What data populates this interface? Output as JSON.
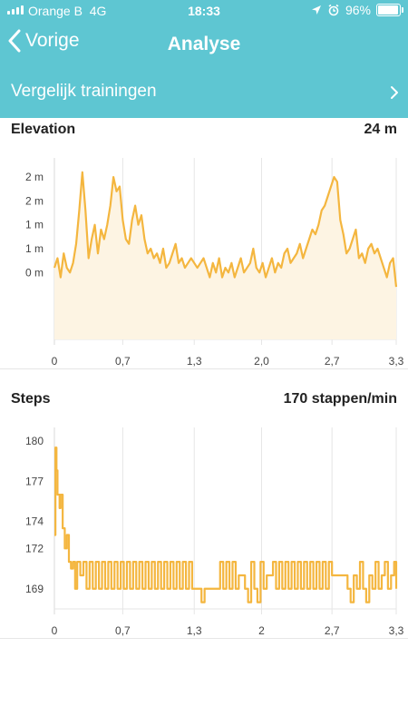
{
  "status_bar": {
    "carrier": "Orange B",
    "network": "4G",
    "time": "18:33",
    "battery": "96%",
    "battery_level": 0.96
  },
  "nav": {
    "back_label": "Vorige",
    "title": "Analyse"
  },
  "compare": {
    "label": "Vergelijk trainingen"
  },
  "colors": {
    "header": "#5ec6d2",
    "line": "#f4b63f",
    "fill": "#fdf4e3"
  },
  "cards": [
    {
      "title": "Elevation",
      "value": "24 m"
    },
    {
      "title": "Steps",
      "value": "170 stappen/min"
    }
  ],
  "chart_data": [
    {
      "type": "area",
      "title": "Elevation",
      "ylim": [
        -0.9,
        2.9
      ],
      "xlim": [
        0,
        3.3
      ],
      "y_ticks": [
        {
          "v": 2.5,
          "label": "2 m"
        },
        {
          "v": 2.0,
          "label": "2 m"
        },
        {
          "v": 1.5,
          "label": "1 m"
        },
        {
          "v": 1.0,
          "label": "1 m"
        },
        {
          "v": 0.5,
          "label": "0 m"
        }
      ],
      "x_ticks": [
        {
          "v": 0,
          "label": "0"
        },
        {
          "v": 0.66,
          "label": "0,7"
        },
        {
          "v": 1.35,
          "label": "1,3"
        },
        {
          "v": 2.0,
          "label": "2,0"
        },
        {
          "v": 2.68,
          "label": "2,7"
        },
        {
          "v": 3.3,
          "label": "3,3"
        }
      ],
      "grid": "vertical",
      "x": [
        0,
        0.03,
        0.06,
        0.09,
        0.12,
        0.15,
        0.18,
        0.21,
        0.24,
        0.27,
        0.3,
        0.33,
        0.36,
        0.39,
        0.42,
        0.45,
        0.48,
        0.51,
        0.54,
        0.57,
        0.6,
        0.63,
        0.66,
        0.69,
        0.72,
        0.75,
        0.78,
        0.81,
        0.84,
        0.87,
        0.9,
        0.93,
        0.96,
        0.99,
        1.02,
        1.05,
        1.08,
        1.11,
        1.14,
        1.17,
        1.2,
        1.23,
        1.26,
        1.29,
        1.32,
        1.35,
        1.38,
        1.41,
        1.44,
        1.47,
        1.5,
        1.53,
        1.56,
        1.59,
        1.62,
        1.65,
        1.68,
        1.71,
        1.74,
        1.77,
        1.8,
        1.83,
        1.86,
        1.89,
        1.92,
        1.95,
        1.98,
        2.01,
        2.04,
        2.07,
        2.1,
        2.13,
        2.16,
        2.19,
        2.22,
        2.25,
        2.28,
        2.31,
        2.34,
        2.37,
        2.4,
        2.43,
        2.46,
        2.49,
        2.52,
        2.55,
        2.58,
        2.61,
        2.64,
        2.67,
        2.7,
        2.73,
        2.76,
        2.79,
        2.82,
        2.85,
        2.88,
        2.91,
        2.94,
        2.97,
        3.0,
        3.03,
        3.06,
        3.09,
        3.12,
        3.15,
        3.18,
        3.21,
        3.24,
        3.27,
        3.3
      ],
      "y": [
        0.6,
        0.8,
        0.4,
        0.9,
        0.6,
        0.5,
        0.7,
        1.1,
        1.8,
        2.6,
        1.8,
        0.8,
        1.2,
        1.5,
        0.9,
        1.4,
        1.2,
        1.5,
        1.9,
        2.5,
        2.2,
        2.3,
        1.6,
        1.2,
        1.1,
        1.6,
        1.9,
        1.5,
        1.7,
        1.2,
        0.9,
        1.0,
        0.8,
        0.9,
        0.7,
        1.0,
        0.6,
        0.7,
        0.9,
        1.1,
        0.7,
        0.8,
        0.6,
        0.7,
        0.8,
        0.7,
        0.6,
        0.7,
        0.8,
        0.6,
        0.4,
        0.7,
        0.5,
        0.8,
        0.4,
        0.6,
        0.5,
        0.7,
        0.4,
        0.6,
        0.8,
        0.5,
        0.6,
        0.7,
        1.0,
        0.6,
        0.5,
        0.7,
        0.4,
        0.6,
        0.8,
        0.5,
        0.7,
        0.6,
        0.9,
        1.0,
        0.7,
        0.8,
        0.9,
        1.1,
        0.8,
        1.0,
        1.2,
        1.4,
        1.3,
        1.5,
        1.8,
        1.9,
        2.1,
        2.3,
        2.5,
        2.4,
        1.6,
        1.3,
        0.9,
        1.0,
        1.2,
        1.4,
        0.8,
        0.9,
        0.7,
        1.0,
        1.1,
        0.9,
        1.0,
        0.8,
        0.6,
        0.4,
        0.7,
        0.8,
        0.2
      ],
      "labeled_value": "24 m"
    },
    {
      "type": "line",
      "title": "Steps",
      "ylim": [
        167.5,
        181
      ],
      "xlim": [
        0,
        3.3
      ],
      "y_ticks": [
        {
          "v": 180,
          "label": "180"
        },
        {
          "v": 177,
          "label": "177"
        },
        {
          "v": 174,
          "label": "174"
        },
        {
          "v": 172,
          "label": "172"
        },
        {
          "v": 169,
          "label": "169"
        }
      ],
      "x_ticks": [
        {
          "v": 0,
          "label": "0"
        },
        {
          "v": 0.66,
          "label": "0,7"
        },
        {
          "v": 1.35,
          "label": "1,3"
        },
        {
          "v": 2.0,
          "label": "2"
        },
        {
          "v": 2.68,
          "label": "2,7"
        },
        {
          "v": 3.3,
          "label": "3,3"
        }
      ],
      "grid": "vertical",
      "x": [
        0,
        0.01,
        0.02,
        0.03,
        0.05,
        0.06,
        0.08,
        0.1,
        0.12,
        0.14,
        0.16,
        0.18,
        0.2,
        0.22,
        0.25,
        0.28,
        0.31,
        0.34,
        0.37,
        0.4,
        0.43,
        0.46,
        0.49,
        0.52,
        0.55,
        0.58,
        0.61,
        0.64,
        0.67,
        0.7,
        0.73,
        0.76,
        0.79,
        0.82,
        0.85,
        0.88,
        0.91,
        0.94,
        0.97,
        1.0,
        1.03,
        1.06,
        1.09,
        1.12,
        1.15,
        1.18,
        1.21,
        1.24,
        1.27,
        1.3,
        1.33,
        1.36,
        1.39,
        1.42,
        1.45,
        1.48,
        1.51,
        1.54,
        1.57,
        1.6,
        1.63,
        1.66,
        1.69,
        1.72,
        1.75,
        1.78,
        1.81,
        1.84,
        1.87,
        1.9,
        1.93,
        1.96,
        1.99,
        2.02,
        2.05,
        2.08,
        2.11,
        2.14,
        2.17,
        2.2,
        2.23,
        2.26,
        2.29,
        2.32,
        2.35,
        2.38,
        2.41,
        2.44,
        2.47,
        2.5,
        2.53,
        2.56,
        2.59,
        2.62,
        2.65,
        2.68,
        2.71,
        2.74,
        2.77,
        2.8,
        2.83,
        2.86,
        2.89,
        2.92,
        2.95,
        2.98,
        3.01,
        3.04,
        3.07,
        3.1,
        3.13,
        3.16,
        3.19,
        3.22,
        3.25,
        3.28,
        3.3
      ],
      "y": [
        173,
        179.5,
        177.8,
        176,
        175,
        176,
        173.5,
        172,
        173,
        171,
        170.5,
        171,
        169,
        171,
        170,
        171,
        169,
        171,
        169,
        171,
        169,
        171,
        169,
        171,
        169,
        171,
        169,
        171,
        169,
        171,
        169,
        171,
        169,
        171,
        169,
        171,
        169,
        171,
        169,
        171,
        169,
        171,
        169,
        171,
        169,
        171,
        169,
        171,
        169,
        171,
        169,
        169,
        169,
        168,
        169,
        169,
        169,
        169,
        169,
        171,
        169,
        171,
        169,
        171,
        169,
        170,
        170,
        169,
        168,
        171,
        169,
        168,
        171,
        169,
        170,
        170,
        171,
        169,
        171,
        169,
        171,
        169,
        171,
        169,
        171,
        169,
        171,
        169,
        171,
        169,
        171,
        169,
        171,
        169,
        171,
        170,
        170,
        170,
        170,
        170,
        169,
        168,
        170,
        169,
        171,
        169,
        168,
        170,
        169,
        171,
        169,
        170,
        171,
        169,
        170,
        171,
        169
      ],
      "labeled_value": "170 stappen/min"
    }
  ]
}
